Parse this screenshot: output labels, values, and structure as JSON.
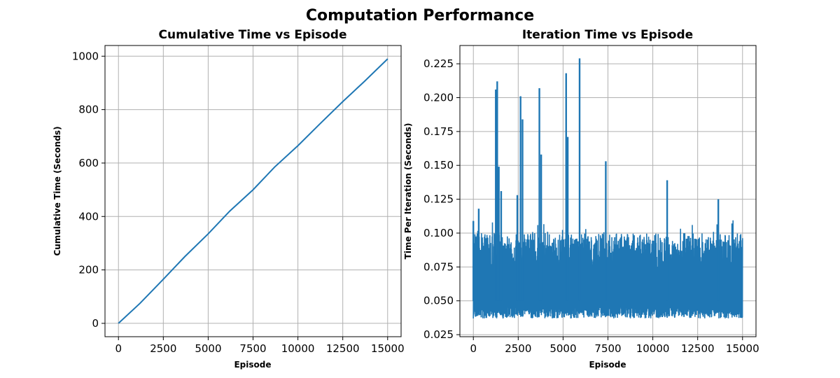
{
  "suptitle": "Computation Performance",
  "colors": {
    "series": "#1f77b4",
    "grid": "#b0b0b0",
    "axes": "#000000",
    "background": "#ffffff"
  },
  "chart_data": [
    {
      "type": "line",
      "title": "Cumulative Time vs Episode",
      "xlabel": "Episode",
      "ylabel": "Cumulative Time (Seconds)",
      "xlim": [
        -750,
        15750
      ],
      "ylim": [
        -50,
        1040
      ],
      "xticks": [
        0,
        2500,
        5000,
        7500,
        10000,
        12500,
        15000
      ],
      "yticks": [
        0,
        200,
        400,
        600,
        800,
        1000
      ],
      "grid": true,
      "series": [
        {
          "x": [
            0,
            1200,
            2500,
            3700,
            5000,
            6200,
            7500,
            8700,
            10000,
            11200,
            12500,
            13700,
            15000
          ],
          "y": [
            0,
            75,
            165,
            250,
            335,
            420,
            500,
            585,
            665,
            745,
            830,
            905,
            990
          ]
        }
      ]
    },
    {
      "type": "line",
      "title": "Iteration Time vs Episode",
      "xlabel": "Episode",
      "ylabel": "Time Per Iteration (Seconds)",
      "xlim": [
        -750,
        15750
      ],
      "ylim": [
        0.0235,
        0.2385
      ],
      "xticks": [
        0,
        2500,
        5000,
        7500,
        10000,
        12500,
        15000
      ],
      "yticks": [
        0.025,
        0.05,
        0.075,
        0.1,
        0.125,
        0.15,
        0.175,
        0.2,
        0.225
      ],
      "grid": true,
      "noise": {
        "baseline_min": 0.037,
        "typical_max": 0.1,
        "upper_max": 0.112
      },
      "spikes": [
        {
          "x": 0,
          "y": 0.109
        },
        {
          "x": 300,
          "y": 0.118
        },
        {
          "x": 1250,
          "y": 0.206
        },
        {
          "x": 1330,
          "y": 0.212
        },
        {
          "x": 1420,
          "y": 0.149
        },
        {
          "x": 1550,
          "y": 0.131
        },
        {
          "x": 2450,
          "y": 0.128
        },
        {
          "x": 2630,
          "y": 0.201
        },
        {
          "x": 2740,
          "y": 0.184
        },
        {
          "x": 3680,
          "y": 0.207
        },
        {
          "x": 3780,
          "y": 0.158
        },
        {
          "x": 5170,
          "y": 0.218
        },
        {
          "x": 5260,
          "y": 0.171
        },
        {
          "x": 5920,
          "y": 0.229
        },
        {
          "x": 7380,
          "y": 0.153
        },
        {
          "x": 10800,
          "y": 0.139
        },
        {
          "x": 13650,
          "y": 0.125
        }
      ]
    }
  ]
}
